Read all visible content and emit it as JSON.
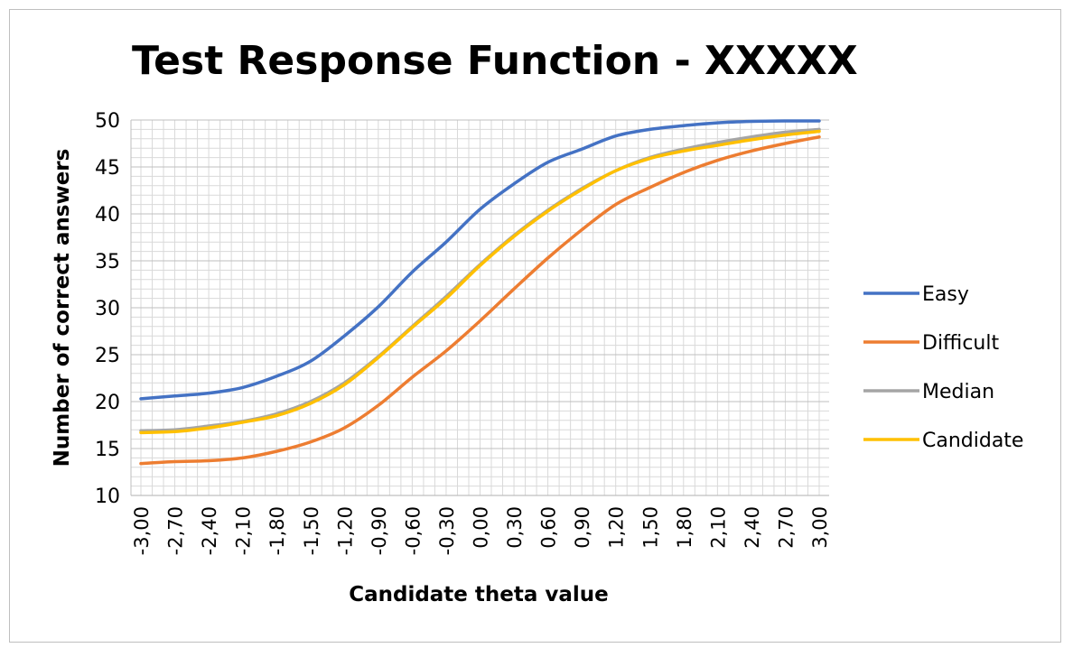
{
  "chart_data": {
    "type": "line",
    "title": "Test Response Function - XXXXX",
    "xlabel": "Candidate theta value",
    "ylabel": "Number of correct answers",
    "ylim": [
      10,
      50
    ],
    "yticks": [
      "10",
      "15",
      "20",
      "25",
      "30",
      "35",
      "40",
      "45",
      "50"
    ],
    "xlim": [
      -3.0,
      3.0
    ],
    "xtick_labels": [
      "-3,00",
      "-2,70",
      "-2,40",
      "-2,10",
      "-1,80",
      "-1,50",
      "-1,20",
      "-0,90",
      "-0,60",
      "-0,30",
      "0,00",
      "0,30",
      "0,60",
      "0,90",
      "1,20",
      "1,50",
      "1,80",
      "2,10",
      "2,40",
      "2,70",
      "3,00"
    ],
    "grid": true,
    "legend_position": "right",
    "x": [
      -3.0,
      -2.7,
      -2.4,
      -2.1,
      -1.8,
      -1.5,
      -1.2,
      -0.9,
      -0.6,
      -0.3,
      0.0,
      0.3,
      0.6,
      0.9,
      1.2,
      1.5,
      1.8,
      2.1,
      2.4,
      2.7,
      3.0
    ],
    "series": [
      {
        "name": "Easy",
        "color": "#4472C4",
        "values": [
          20.3,
          20.6,
          20.9,
          21.5,
          22.7,
          24.3,
          27.0,
          30.1,
          33.8,
          37.0,
          40.5,
          43.2,
          45.5,
          46.9,
          48.3,
          49.0,
          49.4,
          49.7,
          49.85,
          49.9,
          49.9
        ]
      },
      {
        "name": "Difficult",
        "color": "#ED7D31",
        "values": [
          13.4,
          13.6,
          13.7,
          14.0,
          14.7,
          15.7,
          17.2,
          19.6,
          22.6,
          25.4,
          28.6,
          32.0,
          35.3,
          38.3,
          41.0,
          42.8,
          44.4,
          45.7,
          46.7,
          47.5,
          48.2
        ]
      },
      {
        "name": "Median",
        "color": "#A5A5A5",
        "values": [
          16.9,
          17.0,
          17.4,
          17.9,
          18.7,
          20.0,
          22.0,
          24.8,
          28.0,
          31.2,
          34.6,
          37.7,
          40.4,
          42.7,
          44.6,
          46.0,
          46.9,
          47.6,
          48.2,
          48.7,
          49.0
        ]
      },
      {
        "name": "Candidate",
        "color": "#FFC000",
        "values": [
          16.7,
          16.8,
          17.2,
          17.8,
          18.5,
          19.8,
          21.8,
          24.7,
          27.9,
          31.0,
          34.5,
          37.6,
          40.3,
          42.6,
          44.6,
          45.9,
          46.7,
          47.3,
          47.9,
          48.4,
          48.8
        ]
      }
    ]
  }
}
